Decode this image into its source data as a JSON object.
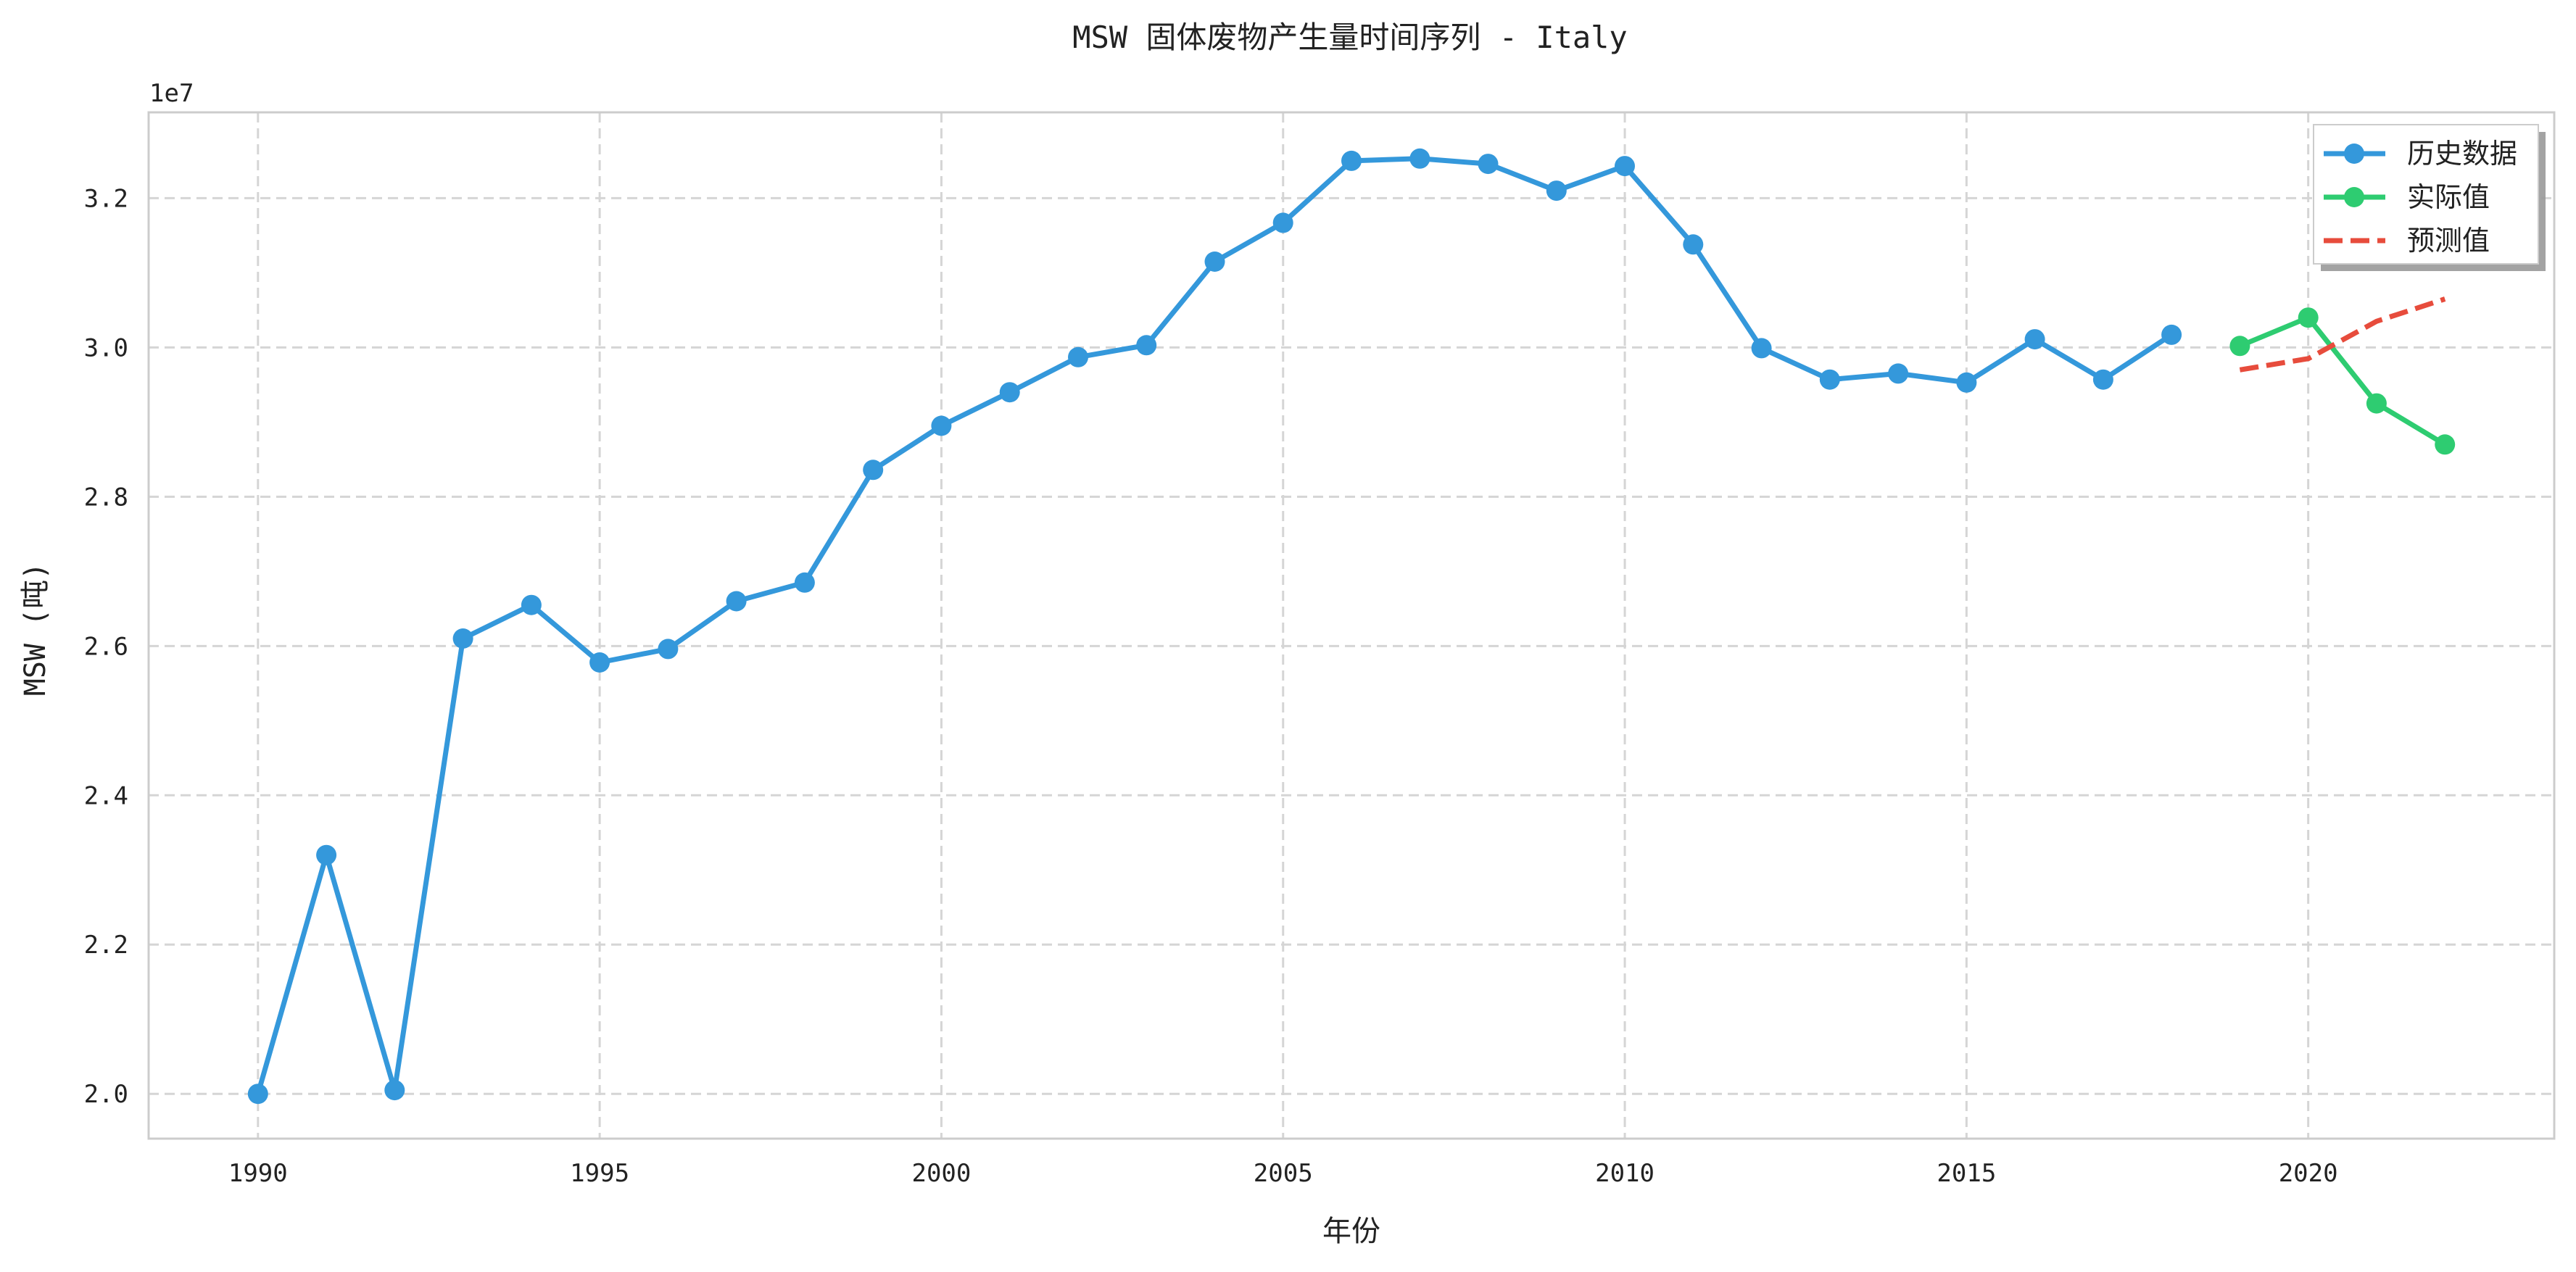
{
  "chart_data": {
    "type": "line",
    "title": "MSW 固体废物产生量时间序列 - Italy",
    "xlabel": "年份",
    "ylabel": "MSW (吨)",
    "y_offset_label": "1e7",
    "xlim": [
      1988.4,
      2023.6
    ],
    "ylim": [
      19400000,
      33150000
    ],
    "x_ticks": [
      1990,
      1995,
      2000,
      2005,
      2010,
      2015,
      2020
    ],
    "y_ticks": [
      20000000,
      22000000,
      24000000,
      26000000,
      28000000,
      30000000,
      32000000
    ],
    "y_tick_labels": [
      "2.0",
      "2.2",
      "2.4",
      "2.6",
      "2.8",
      "3.0",
      "3.2"
    ],
    "grid": true,
    "legend_position": "top-right",
    "series": [
      {
        "name": "历史数据",
        "style": "line-marker",
        "color": "#3498db",
        "x": [
          1990,
          1991,
          1992,
          1993,
          1994,
          1995,
          1996,
          1997,
          1998,
          1999,
          2000,
          2001,
          2002,
          2003,
          2004,
          2005,
          2006,
          2007,
          2008,
          2009,
          2010,
          2011,
          2012,
          2013,
          2014,
          2015,
          2016,
          2017,
          2018
        ],
        "values": [
          20000000,
          23200000,
          20050000,
          26100000,
          26550000,
          25780000,
          25960000,
          26600000,
          26850000,
          28360000,
          28950000,
          29400000,
          29870000,
          30030000,
          31150000,
          31670000,
          32500000,
          32530000,
          32460000,
          32100000,
          32430000,
          31380000,
          29990000,
          29570000,
          29650000,
          29530000,
          30110000,
          29570000,
          30170000
        ]
      },
      {
        "name": "实际值",
        "style": "line-marker",
        "color": "#2ecc71",
        "x": [
          2019,
          2020,
          2021,
          2022
        ],
        "values": [
          30020000,
          30400000,
          29250000,
          28700000
        ]
      },
      {
        "name": "预测值",
        "style": "dashed",
        "color": "#e74c3c",
        "x": [
          2019,
          2020,
          2021,
          2022
        ],
        "values": [
          29700000,
          29850000,
          30350000,
          30650000
        ]
      }
    ]
  }
}
